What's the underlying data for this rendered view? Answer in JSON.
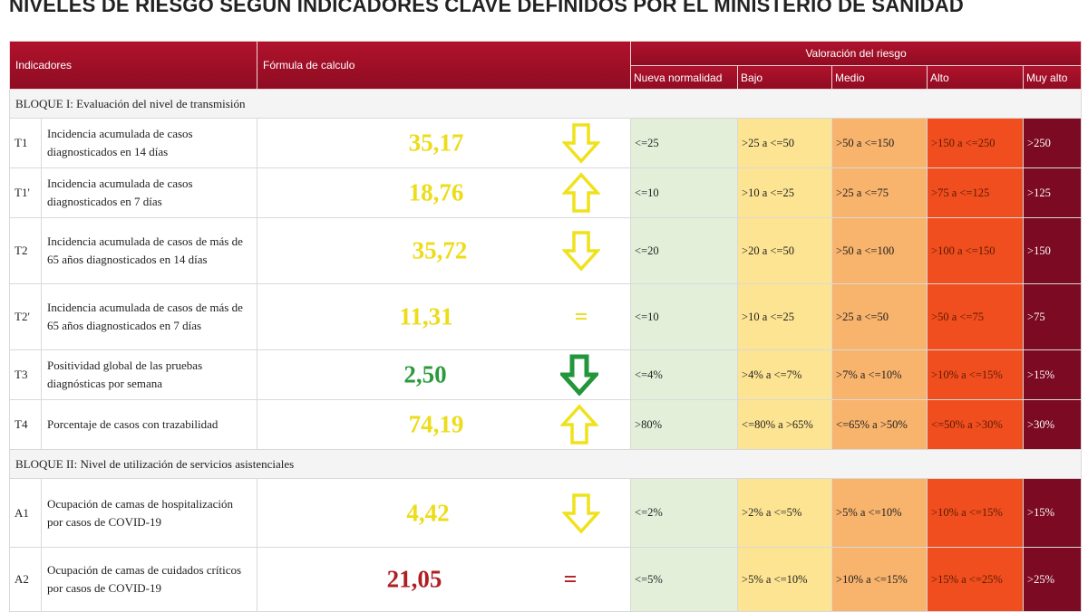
{
  "title": "NIVELES DE RIESGO SEGÚN INDICADORES CLAVE DEFINIDOS POR EL MINISTERIO DE SANIDAD",
  "table": {
    "header": {
      "indicators": "Indicadores",
      "formula": "Fórmula de calculo",
      "assessment": "Valoración del riesgo",
      "levels": [
        "Nueva normalidad",
        "Bajo",
        "Medio",
        "Alto",
        "Muy alto"
      ]
    },
    "blocks": [
      {
        "title": "BLOQUE I: Evaluación del nivel de transmisión",
        "rows": [
          {
            "code": "T1",
            "indicator": "Incidencia acumulada de casos diagnosticados en 14 días",
            "value": "35,17",
            "levels": [
              "<=25",
              ">25 a <=50",
              ">50 a <=150",
              ">150 a <=250",
              ">250"
            ]
          },
          {
            "code": "T1'",
            "indicator": "Incidencia acumulada de casos diagnosticados en 7 días",
            "value": "18,76",
            "levels": [
              "<=10",
              ">10 a <=25",
              ">25 a <=75",
              ">75 a <=125",
              ">125"
            ]
          },
          {
            "code": "T2",
            "indicator": "Incidencia acumulada de casos de más de 65 años diagnosticados en 14 días",
            "value": "35,72",
            "levels": [
              "<=20",
              ">20 a <=50",
              ">50 a <=100",
              ">100 a <=150",
              ">150"
            ]
          },
          {
            "code": "T2'",
            "indicator": "Incidencia acumulada de casos de más de 65 años diagnosticados en 7 días",
            "value": "11,31",
            "trend": "=",
            "levels": [
              "<=10",
              ">10 a <=25",
              ">25 a <=50",
              ">50 a <=75",
              ">75"
            ]
          },
          {
            "code": "T3",
            "indicator": "Positividad global de las pruebas diagnósticas por semana",
            "value": "2,50",
            "levels": [
              "<=4%",
              ">4% a <=7%",
              ">7% a <=10%",
              ">10% a <=15%",
              ">15%"
            ]
          },
          {
            "code": "T4",
            "indicator": "Porcentaje de casos con trazabilidad",
            "value": "74,19",
            "levels": [
              ">80%",
              "<=80% a >65%",
              "<=65% a >50%",
              "<=50% a >30%",
              ">30%"
            ]
          }
        ]
      },
      {
        "title": "BLOQUE II: Nivel de utilización de servicios asistenciales",
        "rows": [
          {
            "code": "A1",
            "indicator": "Ocupación de camas de hospitalización por casos de COVID-19",
            "value": "4,42",
            "levels": [
              "<=2%",
              ">2% a <=5%",
              ">5% a <=10%",
              ">10% a <=15%",
              ">15%"
            ]
          },
          {
            "code": "A2",
            "indicator": "Ocupación de camas de cuidados críticos por casos de COVID-19",
            "value": "21,05",
            "trend": "=",
            "levels": [
              "<=5%",
              ">5% a <=10%",
              ">10% a <=15%",
              ">15% a <=25%",
              ">25%"
            ]
          }
        ]
      }
    ]
  }
}
